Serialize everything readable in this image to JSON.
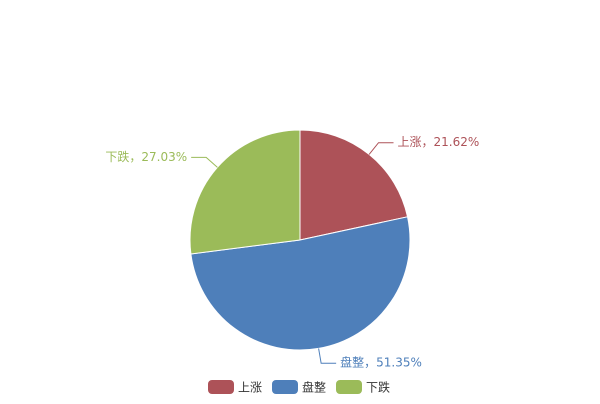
{
  "chart_data": {
    "type": "pie",
    "categories": [
      "上涨",
      "盘整",
      "下跌"
    ],
    "values": [
      21.62,
      51.35,
      27.03
    ],
    "value_labels": [
      "上涨，21.62%",
      "盘整，51.35%",
      "下跌，27.03%"
    ],
    "colors": [
      "#ad5258",
      "#4e7fba",
      "#9bbb59"
    ],
    "legend": "bottom"
  }
}
